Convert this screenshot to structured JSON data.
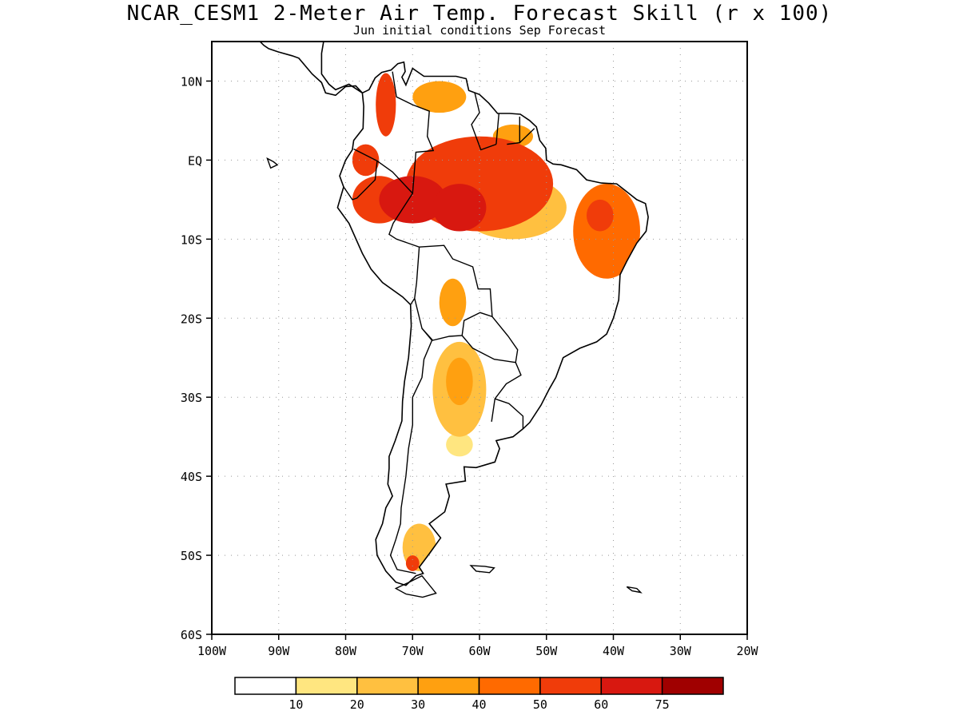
{
  "title": "NCAR_CESM1 2-Meter Air Temp. Forecast Skill (r x 100)",
  "subtitle": "Jun initial conditions  Sep Forecast",
  "map": {
    "lon_range": [
      -100,
      -20
    ],
    "lat_range": [
      -60,
      15
    ],
    "lat_ticks": [
      {
        "value": 10,
        "label": "10N"
      },
      {
        "value": 0,
        "label": "EQ"
      },
      {
        "value": -10,
        "label": "10S"
      },
      {
        "value": -20,
        "label": "20S"
      },
      {
        "value": -30,
        "label": "30S"
      },
      {
        "value": -40,
        "label": "40S"
      },
      {
        "value": -50,
        "label": "50S"
      },
      {
        "value": -60,
        "label": "60S"
      }
    ],
    "lon_ticks": [
      {
        "value": -100,
        "label": "100W"
      },
      {
        "value": -90,
        "label": "90W"
      },
      {
        "value": -80,
        "label": "80W"
      },
      {
        "value": -70,
        "label": "70W"
      },
      {
        "value": -60,
        "label": "60W"
      },
      {
        "value": -50,
        "label": "50W"
      },
      {
        "value": -40,
        "label": "40W"
      },
      {
        "value": -30,
        "label": "30W"
      },
      {
        "value": -20,
        "label": "20W"
      }
    ],
    "grid": "dotted"
  },
  "colorbar": {
    "colors": [
      "#ffffff",
      "#ffe680",
      "#ffc040",
      "#ffa010",
      "#ff6a00",
      "#f03c0a",
      "#d81810",
      "#a00000"
    ],
    "labels": [
      "10",
      "20",
      "30",
      "40",
      "50",
      "60",
      "75"
    ]
  },
  "skill_regions": [
    {
      "lon": -60,
      "lat": -3,
      "rx": 11,
      "ry": 6,
      "level": 5
    },
    {
      "lon": -70,
      "lat": -5,
      "rx": 5,
      "ry": 3,
      "level": 6
    },
    {
      "lon": -63,
      "lat": -6,
      "rx": 4,
      "ry": 3,
      "level": 6
    },
    {
      "lon": -75,
      "lat": -5,
      "rx": 4,
      "ry": 3,
      "level": 5
    },
    {
      "lon": -77,
      "lat": 0,
      "rx": 2,
      "ry": 2,
      "level": 5
    },
    {
      "lon": -66,
      "lat": 8,
      "rx": 4,
      "ry": 2,
      "level": 3
    },
    {
      "lon": -74,
      "lat": 7,
      "rx": 1.5,
      "ry": 4,
      "level": 5
    },
    {
      "lon": -55,
      "lat": 3,
      "rx": 3,
      "ry": 1.5,
      "level": 3
    },
    {
      "lon": -55,
      "lat": -6,
      "rx": 8,
      "ry": 4,
      "level": 2
    },
    {
      "lon": -41,
      "lat": -9,
      "rx": 5,
      "ry": 6,
      "level": 4
    },
    {
      "lon": -42,
      "lat": -7,
      "rx": 2,
      "ry": 2,
      "level": 5
    },
    {
      "lon": -64,
      "lat": -18,
      "rx": 2,
      "ry": 3,
      "level": 3
    },
    {
      "lon": -63,
      "lat": -29,
      "rx": 4,
      "ry": 6,
      "level": 2
    },
    {
      "lon": -63,
      "lat": -28,
      "rx": 2,
      "ry": 3,
      "level": 3
    },
    {
      "lon": -63,
      "lat": -36,
      "rx": 2,
      "ry": 1.5,
      "level": 1
    },
    {
      "lon": -69,
      "lat": -49,
      "rx": 2.5,
      "ry": 3,
      "level": 2
    },
    {
      "lon": -70,
      "lat": -51,
      "rx": 1,
      "ry": 1,
      "level": 5
    }
  ]
}
